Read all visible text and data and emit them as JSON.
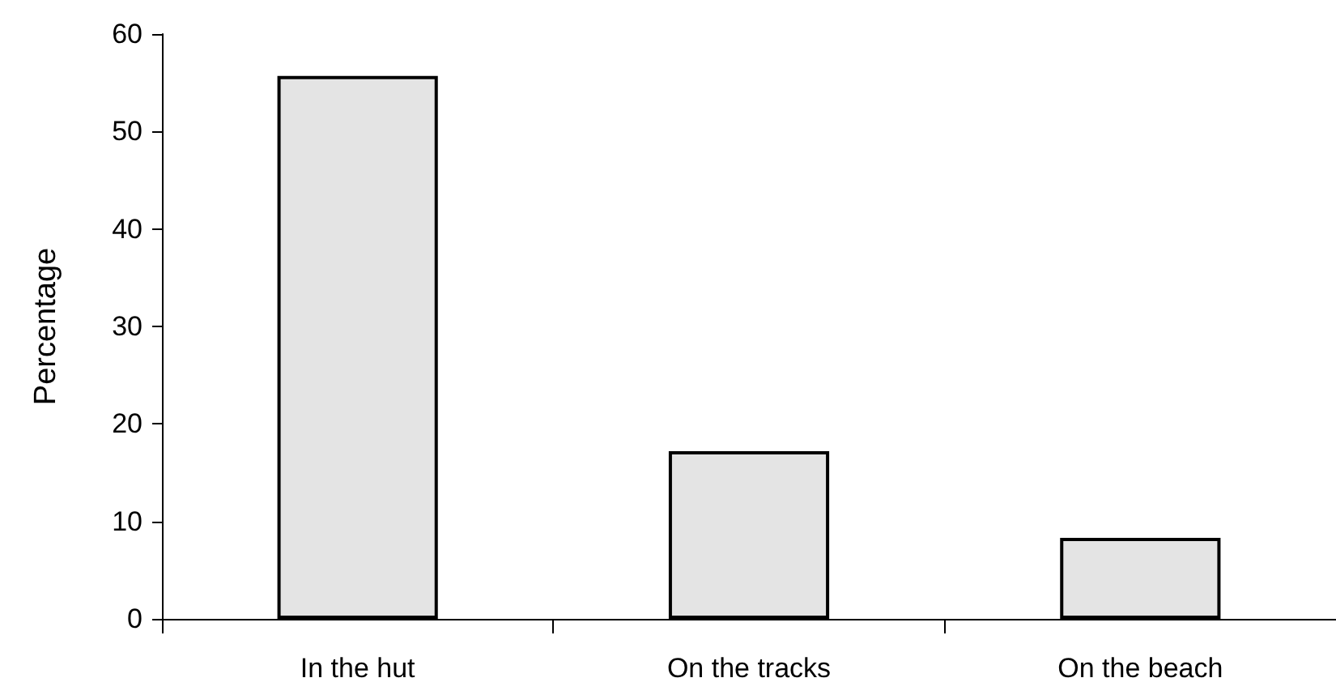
{
  "chart_data": {
    "type": "bar",
    "ylabel": "Percentage",
    "categories": [
      "In the hut",
      "On the tracks",
      "On the beach"
    ],
    "values": [
      55.7,
      17.2,
      8.3
    ],
    "color": "#e4e4e4",
    "ylim": [
      0,
      60
    ],
    "yticks": [
      0,
      10,
      20,
      30,
      40,
      50,
      60
    ],
    "grid": false
  }
}
